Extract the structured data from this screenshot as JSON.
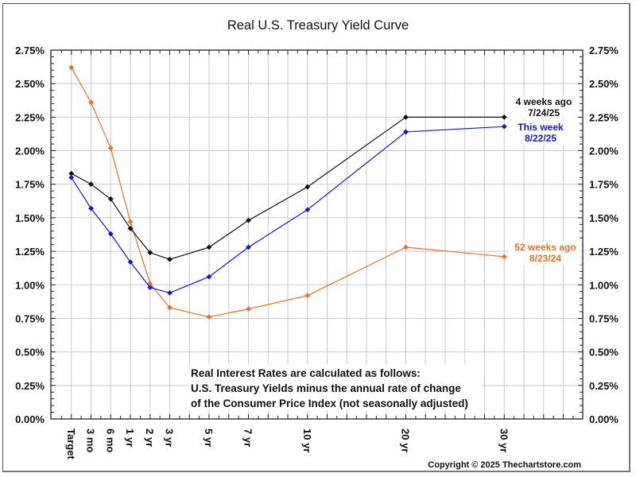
{
  "chart_data": {
    "type": "line",
    "title": "Real U.S. Treasury Yield Curve",
    "xlabel": "",
    "ylabel": "",
    "categories": [
      "Target",
      "3 mo",
      "6 mo",
      "1 yr",
      "2 yr",
      "3 yr",
      "5 yr",
      "7 yr",
      "10 yr",
      "20 yr",
      "30 yr"
    ],
    "ylim": [
      0,
      2.75
    ],
    "yticks": [
      "0.00%",
      "0.25%",
      "0.50%",
      "0.75%",
      "1.00%",
      "1.25%",
      "1.50%",
      "1.75%",
      "2.00%",
      "2.25%",
      "2.50%",
      "2.75%"
    ],
    "grid": true,
    "series": [
      {
        "name": "52 weeks ago",
        "date": "8/23/24",
        "color": "#f26f21",
        "values": [
          2.62,
          2.36,
          2.02,
          1.47,
          1.01,
          0.83,
          0.76,
          0.82,
          0.92,
          1.28,
          1.21
        ]
      },
      {
        "name": "4 weeks ago",
        "date": "7/24/25",
        "color": "#111111",
        "values": [
          1.83,
          1.75,
          1.64,
          1.42,
          1.24,
          1.19,
          1.28,
          1.48,
          1.73,
          2.25,
          2.25
        ]
      },
      {
        "name": "This week",
        "date": "8/22/25",
        "color": "#1414e6",
        "values": [
          1.8,
          1.57,
          1.38,
          1.17,
          0.98,
          0.94,
          1.06,
          1.28,
          1.56,
          2.14,
          2.18
        ]
      }
    ],
    "annotation": [
      "Real Interest Rates are calculated as follows:",
      "U.S. Treasury Yields minus the annual rate of change",
      "of the Consumer Price Index (not seasonally adjusted)"
    ],
    "footer": "Copyright © 2025 Thechartstore.com"
  }
}
